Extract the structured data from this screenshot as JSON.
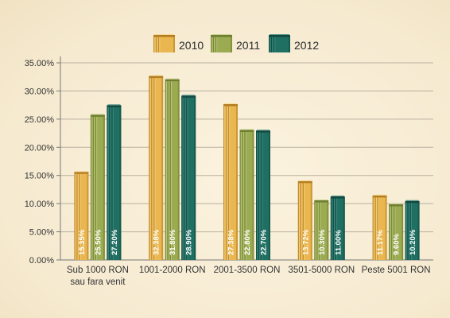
{
  "chart_data": {
    "type": "bar",
    "categories": [
      [
        "Sub 1000 RON",
        "sau fara venit"
      ],
      [
        "1001-2000 RON"
      ],
      [
        "2001-3500 RON"
      ],
      [
        "3501-5000 RON"
      ],
      [
        "Peste 5001 RON"
      ]
    ],
    "series": [
      {
        "name": "2010",
        "values": [
          15.35,
          32.38,
          27.38,
          13.72,
          11.17
        ],
        "labels": [
          "15.35%",
          "32.38%",
          "27.38%",
          "13.72%",
          "11.17%"
        ],
        "color": "#e9b64f",
        "dark": "#b37d22",
        "light": "#f6d890"
      },
      {
        "name": "2011",
        "values": [
          25.5,
          31.8,
          22.8,
          10.3,
          9.6
        ],
        "labels": [
          "25.50%",
          "31.80%",
          "22.80%",
          "10.30%",
          "9.60%"
        ],
        "color": "#9bab52",
        "dark": "#6e7d30",
        "light": "#c7d38c"
      },
      {
        "name": "2012",
        "values": [
          27.2,
          28.9,
          22.7,
          11.0,
          10.2
        ],
        "labels": [
          "27.20%",
          "28.90%",
          "22.70%",
          "11.00%",
          "10.20%"
        ],
        "color": "#1f6f63",
        "dark": "#124840",
        "light": "#4f968a"
      }
    ],
    "y_ticks": [
      "0.00%",
      "5.00%",
      "10.00%",
      "15.00%",
      "20.00%",
      "25.00%",
      "30.00%",
      "35.00%"
    ],
    "ylim": [
      0,
      35
    ],
    "grid": true,
    "legend_position": "top-center"
  }
}
